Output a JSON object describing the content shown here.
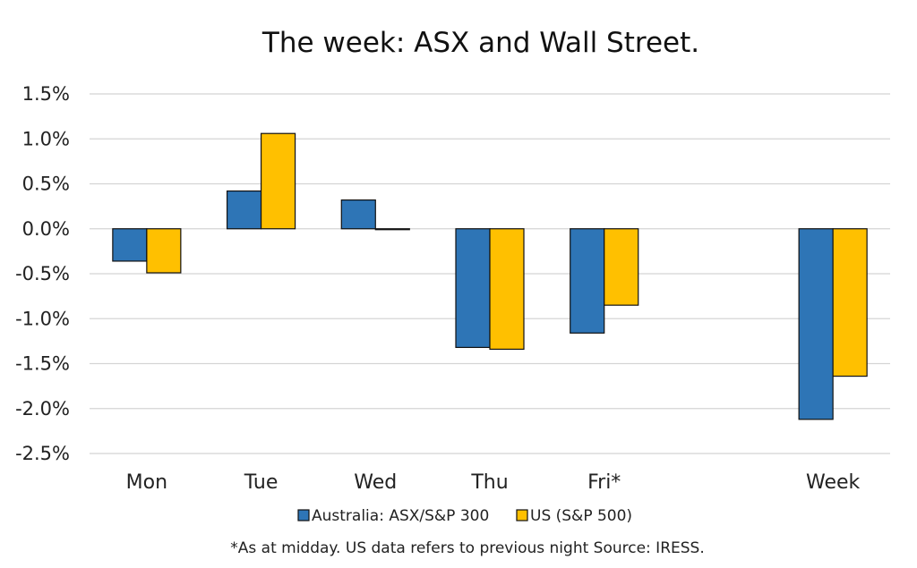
{
  "chart_data": {
    "type": "bar",
    "title": "The week:  ASX and Wall Street.",
    "categories": [
      "Mon",
      "Tue",
      "Wed",
      "Thu",
      "Fri*",
      "",
      "Week"
    ],
    "series": [
      {
        "name": "Australia: ASX/S&P 300",
        "color": "#2E75B6",
        "values": [
          -0.36,
          0.42,
          0.32,
          -1.32,
          -1.16,
          null,
          -2.12
        ]
      },
      {
        "name": "US (S&P 500)",
        "color": "#FFC000",
        "values": [
          -0.49,
          1.06,
          -0.01,
          -1.34,
          -0.85,
          null,
          -1.64
        ]
      }
    ],
    "ylim": [
      -2.5,
      1.5
    ],
    "ytick_values": [
      1.5,
      1.0,
      0.5,
      0.0,
      -0.5,
      -1.0,
      -1.5,
      -2.0,
      -2.5
    ],
    "ytick_labels": [
      "1.5%",
      "1.0%",
      "0.5%",
      "0.0%",
      "-0.5%",
      "-1.0%",
      "-1.5%",
      "-2.0%",
      "-2.5%"
    ],
    "grid": true,
    "legend_position": "bottom",
    "footnote": "*As at midday. US data refers to previous night  Source:  IRESS."
  }
}
